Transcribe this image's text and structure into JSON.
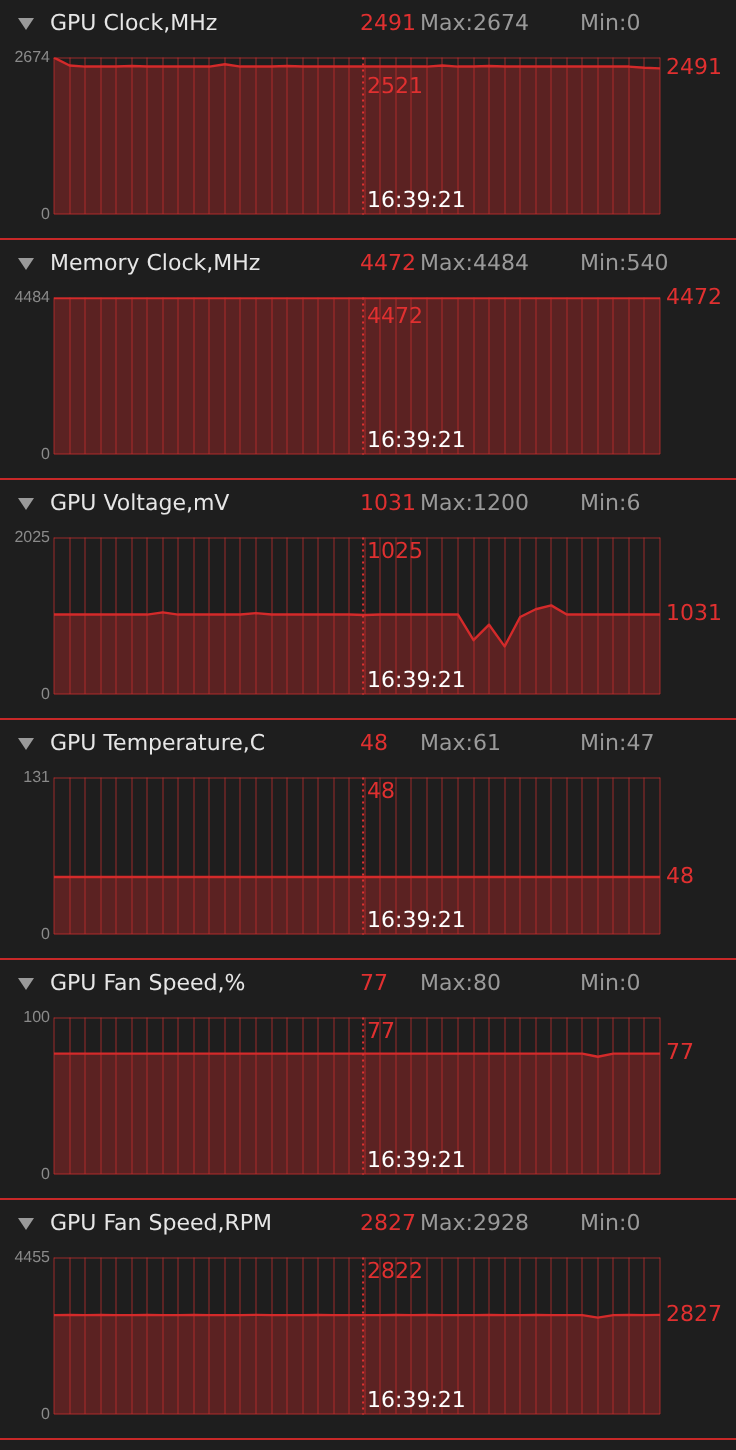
{
  "chart_data": [
    {
      "type": "area",
      "title": "GPU Clock,MHz",
      "subtitle": "2491 Max:2674 Min:0",
      "categories": [
        null,
        null,
        null,
        null,
        null,
        null,
        null,
        null,
        null,
        null,
        null,
        null,
        null,
        null,
        null,
        null,
        null,
        null,
        null,
        null,
        null,
        null,
        null,
        null,
        null,
        null,
        null,
        null,
        null,
        null,
        null,
        null,
        null,
        null,
        null,
        null,
        null,
        null,
        null,
        null
      ],
      "series": [
        {
          "color": "#d42a2a",
          "values": [
            2674,
            2540,
            2521,
            2521,
            2521,
            2530,
            2521,
            2521,
            2521,
            2521,
            2521,
            2560,
            2521,
            2521,
            2521,
            2530,
            2521,
            2521,
            2521,
            2521,
            2521,
            2521,
            2521,
            2521,
            2521,
            2540,
            2521,
            2521,
            2530,
            2521,
            2521,
            2521,
            2521,
            2521,
            2521,
            2521,
            2521,
            2521,
            2500,
            2491
          ]
        }
      ],
      "ylim": [
        0,
        2674
      ],
      "yticks": [
        0,
        2674
      ],
      "grid": true,
      "tick_labels": "y",
      "legend": false,
      "annotations": [
        "2521",
        "2491",
        "16:39:21"
      ]
    },
    {
      "type": "area",
      "title": "Memory Clock,MHz",
      "subtitle": "4472 Max:4484 Min:540",
      "categories": [
        null,
        null,
        null,
        null,
        null,
        null,
        null,
        null,
        null,
        null,
        null,
        null,
        null,
        null,
        null,
        null,
        null,
        null,
        null,
        null,
        null,
        null,
        null,
        null,
        null,
        null,
        null,
        null,
        null,
        null,
        null,
        null,
        null,
        null,
        null,
        null,
        null,
        null,
        null,
        null
      ],
      "series": [
        {
          "color": "#d42a2a",
          "values": [
            4472,
            4472,
            4472,
            4472,
            4472,
            4472,
            4472,
            4472,
            4472,
            4472,
            4472,
            4472,
            4472,
            4472,
            4472,
            4472,
            4472,
            4472,
            4472,
            4472,
            4472,
            4472,
            4472,
            4472,
            4472,
            4472,
            4472,
            4472,
            4472,
            4472,
            4472,
            4472,
            4472,
            4472,
            4472,
            4472,
            4472,
            4472,
            4472,
            4472
          ]
        }
      ],
      "ylim": [
        0,
        4484
      ],
      "yticks": [
        0,
        4484
      ],
      "grid": true,
      "tick_labels": "y",
      "legend": false,
      "annotations": [
        "4472",
        "4472",
        "16:39:21"
      ]
    },
    {
      "type": "area",
      "title": "GPU Voltage,mV",
      "subtitle": "1031 Max:1200 Min:6",
      "categories": [
        null,
        null,
        null,
        null,
        null,
        null,
        null,
        null,
        null,
        null,
        null,
        null,
        null,
        null,
        null,
        null,
        null,
        null,
        null,
        null,
        null,
        null,
        null,
        null,
        null,
        null,
        null,
        null,
        null,
        null,
        null,
        null,
        null,
        null,
        null,
        null,
        null,
        null,
        null,
        null
      ],
      "series": [
        {
          "color": "#d42a2a",
          "values": [
            1031,
            1031,
            1031,
            1031,
            1031,
            1031,
            1031,
            1060,
            1031,
            1031,
            1031,
            1031,
            1031,
            1050,
            1031,
            1031,
            1031,
            1031,
            1031,
            1031,
            1025,
            1031,
            1031,
            1031,
            1031,
            1031,
            1031,
            700,
            900,
            620,
            1000,
            1100,
            1150,
            1031,
            1031,
            1031,
            1031,
            1031,
            1031,
            1031
          ]
        }
      ],
      "ylim": [
        0,
        2025
      ],
      "yticks": [
        0,
        2025
      ],
      "grid": true,
      "tick_labels": "y",
      "legend": false,
      "annotations": [
        "1025",
        "1031",
        "16:39:21"
      ]
    },
    {
      "type": "area",
      "title": "GPU Temperature,C",
      "subtitle": "48 Max:61 Min:47",
      "categories": [
        null,
        null,
        null,
        null,
        null,
        null,
        null,
        null,
        null,
        null,
        null,
        null,
        null,
        null,
        null,
        null,
        null,
        null,
        null,
        null,
        null,
        null,
        null,
        null,
        null,
        null,
        null,
        null,
        null,
        null,
        null,
        null,
        null,
        null,
        null,
        null,
        null,
        null,
        null,
        null
      ],
      "series": [
        {
          "color": "#d42a2a",
          "values": [
            48,
            48,
            48,
            48,
            48,
            48,
            48,
            48,
            48,
            48,
            48,
            48,
            48,
            48,
            48,
            48,
            48,
            48,
            48,
            48,
            48,
            48,
            48,
            48,
            48,
            48,
            48,
            48,
            48,
            48,
            48,
            48,
            48,
            48,
            48,
            48,
            48,
            48,
            48,
            48
          ]
        }
      ],
      "ylim": [
        0,
        131
      ],
      "yticks": [
        0,
        131
      ],
      "grid": true,
      "tick_labels": "y",
      "legend": false,
      "annotations": [
        "48",
        "48",
        "16:39:21"
      ]
    },
    {
      "type": "area",
      "title": "GPU Fan Speed,%",
      "subtitle": "77 Max:80 Min:0",
      "categories": [
        null,
        null,
        null,
        null,
        null,
        null,
        null,
        null,
        null,
        null,
        null,
        null,
        null,
        null,
        null,
        null,
        null,
        null,
        null,
        null,
        null,
        null,
        null,
        null,
        null,
        null,
        null,
        null,
        null,
        null,
        null,
        null,
        null,
        null,
        null,
        null,
        null,
        null,
        null,
        null
      ],
      "series": [
        {
          "color": "#d42a2a",
          "values": [
            77,
            77,
            77,
            77,
            77,
            77,
            77,
            77,
            77,
            77,
            77,
            77,
            77,
            77,
            77,
            77,
            77,
            77,
            77,
            77,
            77,
            77,
            77,
            77,
            77,
            77,
            77,
            77,
            77,
            77,
            77,
            77,
            77,
            77,
            77,
            75,
            77,
            77,
            77,
            77
          ]
        }
      ],
      "ylim": [
        0,
        100
      ],
      "yticks": [
        0,
        100
      ],
      "grid": true,
      "tick_labels": "y",
      "legend": false,
      "annotations": [
        "77",
        "77",
        "16:39:21"
      ]
    },
    {
      "type": "area",
      "title": "GPU Fan Speed,RPM",
      "subtitle": "2827 Max:2928 Min:0",
      "categories": [
        null,
        null,
        null,
        null,
        null,
        null,
        null,
        null,
        null,
        null,
        null,
        null,
        null,
        null,
        null,
        null,
        null,
        null,
        null,
        null,
        null,
        null,
        null,
        null,
        null,
        null,
        null,
        null,
        null,
        null,
        null,
        null,
        null,
        null,
        null,
        null,
        null,
        null,
        null,
        null
      ],
      "series": [
        {
          "color": "#d42a2a",
          "values": [
            2822,
            2827,
            2822,
            2827,
            2822,
            2822,
            2827,
            2822,
            2822,
            2827,
            2822,
            2822,
            2822,
            2827,
            2822,
            2822,
            2822,
            2827,
            2822,
            2822,
            2822,
            2822,
            2827,
            2822,
            2827,
            2822,
            2822,
            2822,
            2827,
            2822,
            2822,
            2827,
            2822,
            2822,
            2822,
            2750,
            2822,
            2827,
            2822,
            2827
          ]
        }
      ],
      "ylim": [
        0,
        4455
      ],
      "yticks": [
        0,
        4455
      ],
      "grid": true,
      "tick_labels": "y",
      "legend": false,
      "annotations": [
        "2822",
        "2827",
        "16:39:21"
      ]
    }
  ]
}
